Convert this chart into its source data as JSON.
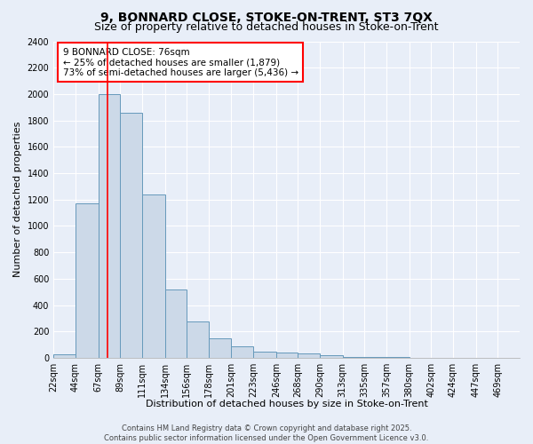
{
  "title": "9, BONNARD CLOSE, STOKE-ON-TRENT, ST3 7QX",
  "subtitle": "Size of property relative to detached houses in Stoke-on-Trent",
  "xlabel": "Distribution of detached houses by size in Stoke-on-Trent",
  "ylabel": "Number of detached properties",
  "bar_values": [
    30,
    1170,
    2000,
    1860,
    1240,
    520,
    275,
    150,
    90,
    45,
    40,
    35,
    20,
    10,
    8,
    5,
    3,
    2,
    2,
    1,
    0
  ],
  "bin_edges": [
    22,
    44,
    67,
    89,
    111,
    134,
    156,
    178,
    201,
    223,
    246,
    268,
    290,
    313,
    335,
    357,
    380,
    402,
    424,
    447,
    469,
    491
  ],
  "x_tick_labels": [
    "22sqm",
    "44sqm",
    "67sqm",
    "89sqm",
    "111sqm",
    "134sqm",
    "156sqm",
    "178sqm",
    "201sqm",
    "223sqm",
    "246sqm",
    "268sqm",
    "290sqm",
    "313sqm",
    "335sqm",
    "357sqm",
    "380sqm",
    "402sqm",
    "424sqm",
    "447sqm",
    "469sqm"
  ],
  "ylim": [
    0,
    2400
  ],
  "yticks": [
    0,
    200,
    400,
    600,
    800,
    1000,
    1200,
    1400,
    1600,
    1800,
    2000,
    2200,
    2400
  ],
  "bar_color": "#ccd9e8",
  "bar_edge_color": "#6699bb",
  "bg_color": "#e8eef8",
  "grid_color": "#ffffff",
  "red_line_x": 76,
  "annotation_line1": "9 BONNARD CLOSE: 76sqm",
  "annotation_line2": "← 25% of detached houses are smaller (1,879)",
  "annotation_line3": "73% of semi-detached houses are larger (5,436) →",
  "footer_line1": "Contains HM Land Registry data © Crown copyright and database right 2025.",
  "footer_line2": "Contains public sector information licensed under the Open Government Licence v3.0.",
  "title_fontsize": 10,
  "subtitle_fontsize": 9,
  "axis_label_fontsize": 8,
  "tick_fontsize": 7,
  "annotation_fontsize": 7.5,
  "footer_fontsize": 6
}
